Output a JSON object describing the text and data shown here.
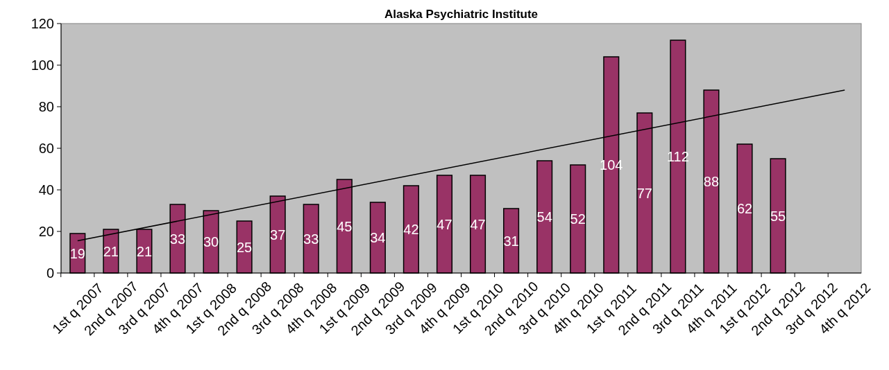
{
  "chart_data": {
    "type": "bar",
    "title": "Alaska Psychiatric Institute",
    "categories": [
      "1st q 2007",
      "2nd q 2007",
      "3rd q 2007",
      "4th q 2007",
      "1st q 2008",
      "2nd q 2008",
      "3rd q 2008",
      "4th q 2008",
      "1st q 2009",
      "2nd q 2009",
      "3rd q 2009",
      "4th q 2009",
      "1st q 2010",
      "2nd q 2010",
      "3rd q 2010",
      "4th q 2010",
      "1st q 2011",
      "2nd q 2011",
      "3rd q 2011",
      "4th q 2011",
      "1st q 2012",
      "2nd q 2012",
      "3rd q 2012",
      "4th q 2012"
    ],
    "series": [
      {
        "color": "#993366",
        "values": [
          19,
          21,
          21,
          33,
          30,
          25,
          37,
          33,
          45,
          34,
          42,
          47,
          47,
          31,
          54,
          52,
          104,
          77,
          112,
          88,
          62,
          55,
          null,
          null
        ],
        "value_labels": [
          "19",
          "21",
          "21",
          "33",
          "30",
          "25",
          "37",
          "33",
          "45",
          "34",
          "42",
          "47",
          "47",
          "31",
          "54",
          "52",
          "104",
          "77",
          "112",
          "88",
          "62",
          "55",
          null,
          null
        ]
      },
      {
        "type": "line",
        "color": "#000000",
        "x": [
          "1st q 2007",
          "4th q 2012"
        ],
        "values": [
          15.5,
          88
        ]
      }
    ],
    "ylim": [
      0,
      120
    ],
    "yticks": [
      0,
      20,
      40,
      60,
      80,
      100,
      120
    ],
    "grid": false
  }
}
